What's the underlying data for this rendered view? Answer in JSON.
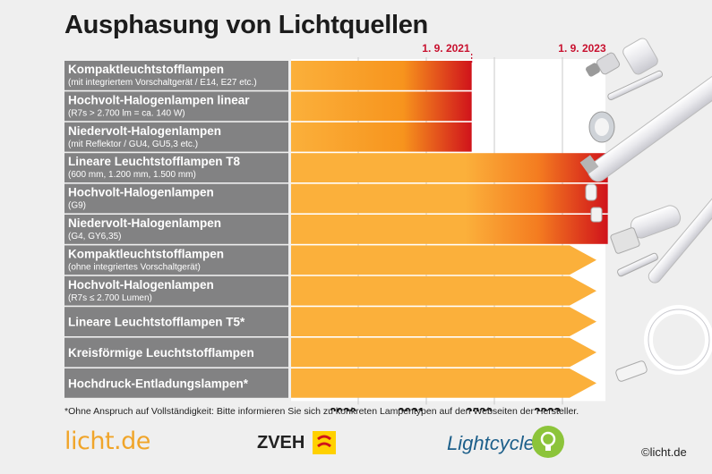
{
  "title": "Ausphasung von Lichtquellen",
  "footnote": "*Ohne Anspruch auf Vollständigkeit: Bitte informieren Sie sich zu konkreten Lampentypen auf den Webseiten der Hersteller.",
  "logos": {
    "licht": "licht.de",
    "zveh": "ZVEH",
    "lightcycle": "Lightcycle"
  },
  "copyright": "©licht.de",
  "colors": {
    "bar": "#fbb03b",
    "phaseout_end": "#d0131b",
    "label_bg": "#828283",
    "accent": "#c8102e"
  },
  "chart_data": {
    "type": "gantt",
    "x_ticks": [
      "2020",
      "2021",
      "2022",
      "2023"
    ],
    "markers": [
      {
        "label": "1. 9. 2021",
        "date": "2021-09-01"
      },
      {
        "label": "1. 9. 2023",
        "date": "2023-09-01"
      }
    ],
    "rows": [
      {
        "name": "Kompaktleuchtstofflampen",
        "sub": "(mit integriertem Vorschaltgerät / E14, E27 etc.)",
        "end": "2021-09-01",
        "continues": false
      },
      {
        "name": "Hochvolt-Halogenlampen linear",
        "sub": "(R7s > 2.700 lm = ca. 140 W)",
        "end": "2021-09-01",
        "continues": false
      },
      {
        "name": "Niedervolt-Halogenlampen",
        "sub": "(mit Reflektor / GU4, GU5,3 etc.)",
        "end": "2021-09-01",
        "continues": false
      },
      {
        "name": "Lineare Leuchtstofflampen T8",
        "sub": "(600 mm, 1.200 mm, 1.500 mm)",
        "end": "2023-09-01",
        "continues": false
      },
      {
        "name": "Hochvolt-Halogenlampen",
        "sub": "(G9)",
        "end": "2023-09-01",
        "continues": false
      },
      {
        "name": "Niedervolt-Halogenlampen",
        "sub": "(G4, GY6,35)",
        "end": "2023-09-01",
        "continues": false
      },
      {
        "name": "Kompaktleuchtstofflampen",
        "sub": "(ohne integriertes Vorschaltgerät)",
        "end": null,
        "continues": true
      },
      {
        "name": "Hochvolt-Halogenlampen",
        "sub": "(R7s ≤ 2.700 Lumen)",
        "end": null,
        "continues": true
      },
      {
        "name": "Lineare Leuchtstofflampen T5*",
        "sub": "",
        "end": null,
        "continues": true
      },
      {
        "name": "Kreisförmige Leuchtstofflampen",
        "sub": "",
        "end": null,
        "continues": true
      },
      {
        "name": "Hochdruck-Entladungslampen*",
        "sub": "",
        "end": null,
        "continues": true
      }
    ]
  }
}
